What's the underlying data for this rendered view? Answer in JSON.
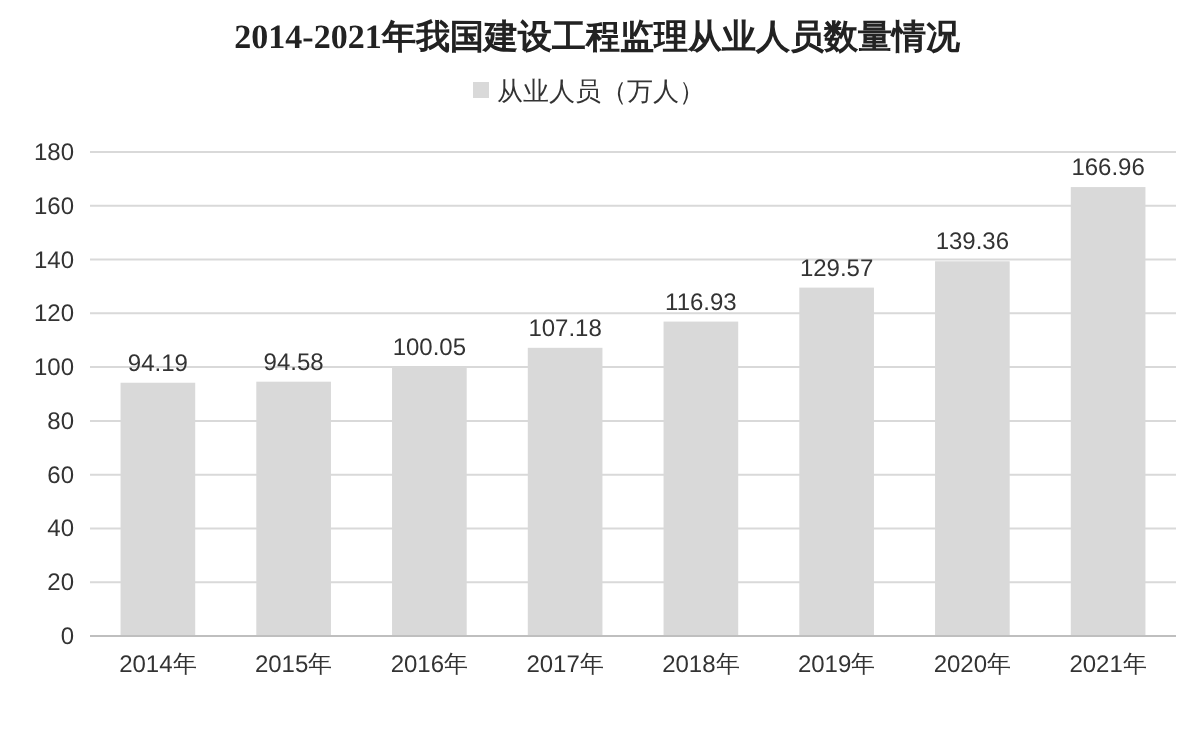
{
  "chart_data": {
    "type": "bar",
    "title": "2014-2021年我国建设工程监理从业人员数量情况",
    "categories": [
      "2014年",
      "2015年",
      "2016年",
      "2017年",
      "2018年",
      "2019年",
      "2020年",
      "2021年"
    ],
    "series": [
      {
        "name": "从业人员（万人）",
        "color": "#d9d9d9",
        "values": [
          94.19,
          94.58,
          100.05,
          107.18,
          116.93,
          129.57,
          139.36,
          166.96
        ]
      }
    ],
    "ylim": [
      0,
      180
    ],
    "yticks": [
      0,
      20,
      40,
      60,
      80,
      100,
      120,
      140,
      160,
      180
    ],
    "grid": "y",
    "legend": "top",
    "data_labels": true
  }
}
